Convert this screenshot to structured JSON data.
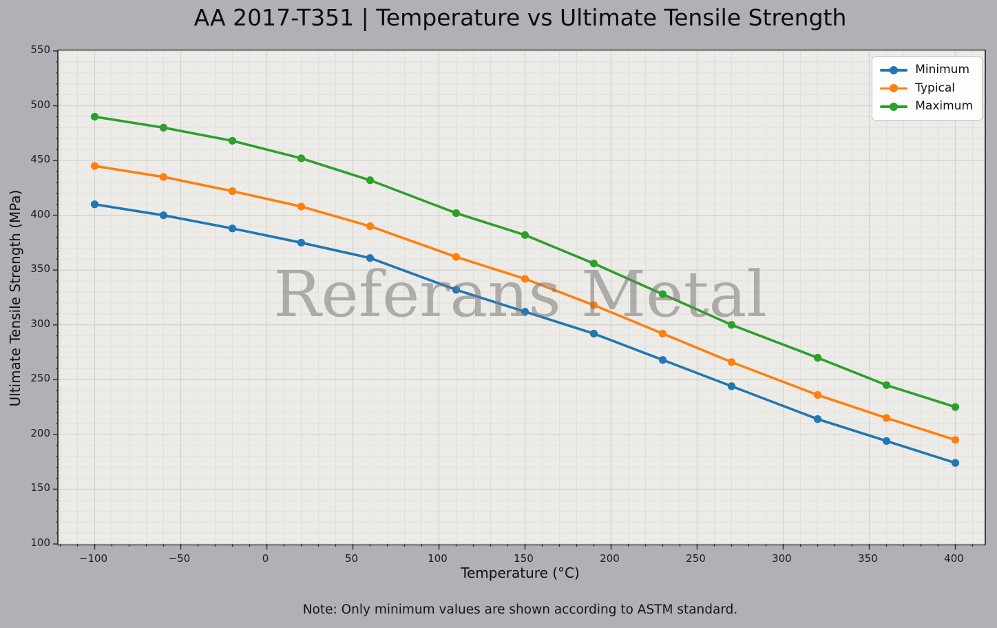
{
  "chart_data": {
    "type": "line",
    "title": "AA 2017-T351 | Temperature vs Ultimate Tensile Strength",
    "xlabel": "Temperature (°C)",
    "ylabel": "Ultimate Tensile Strength (MPa)",
    "note": "Note: Only minimum values are shown according to ASTM standard.",
    "watermark": "Referans Metal",
    "x": [
      -100,
      -60,
      -20,
      20,
      60,
      110,
      150,
      190,
      230,
      270,
      320,
      360,
      400
    ],
    "series": [
      {
        "name": "Minimum",
        "color": "#1f77b4",
        "values": [
          410,
          400,
          388,
          375,
          361,
          332,
          312,
          292,
          268,
          244,
          214,
          194,
          174
        ]
      },
      {
        "name": "Typical",
        "color": "#ff7f0e",
        "values": [
          445,
          435,
          422,
          408,
          390,
          362,
          342,
          318,
          292,
          266,
          236,
          215,
          195
        ]
      },
      {
        "name": "Maximum",
        "color": "#2ca02c",
        "values": [
          490,
          480,
          468,
          452,
          432,
          402,
          382,
          356,
          328,
          300,
          270,
          245,
          225
        ]
      }
    ],
    "xlim": [
      -121,
      417
    ],
    "ylim": [
      100,
      550
    ],
    "xticks": [
      {
        "v": -100,
        "label": "−100"
      },
      {
        "v": -50,
        "label": "−50"
      },
      {
        "v": 0,
        "label": "0"
      },
      {
        "v": 50,
        "label": "50"
      },
      {
        "v": 100,
        "label": "100"
      },
      {
        "v": 150,
        "label": "150"
      },
      {
        "v": 200,
        "label": "200"
      },
      {
        "v": 250,
        "label": "250"
      },
      {
        "v": 300,
        "label": "300"
      },
      {
        "v": 350,
        "label": "350"
      },
      {
        "v": 400,
        "label": "400"
      }
    ],
    "yticks": [
      100,
      150,
      200,
      250,
      300,
      350,
      400,
      450,
      500,
      550
    ],
    "minor_step_x": 10,
    "minor_step_y": 10,
    "grid": true,
    "legend_position": "top-right",
    "colors": {
      "figure_bg": "#b0b0b6",
      "plot_bg": "#edebe7",
      "major_grid": "#d6d2ce",
      "minor_grid": "#e2dfdb",
      "spine": "#3a3a3a",
      "watermark": "rgba(120,120,120,0.55)"
    }
  }
}
